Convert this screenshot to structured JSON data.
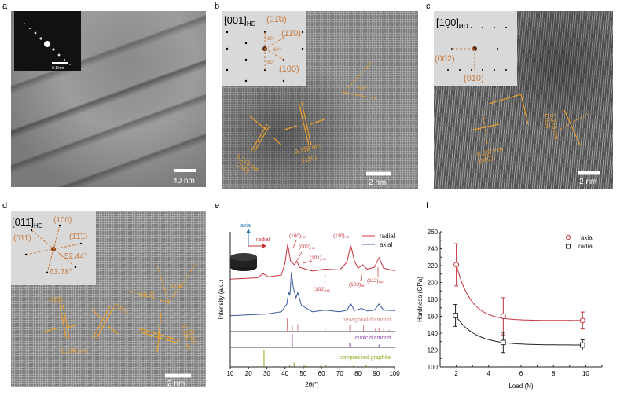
{
  "panels": {
    "a": {
      "label": "a",
      "scale_bar": "40 nm",
      "inset_scale": "0.1/nm"
    },
    "b": {
      "label": "b",
      "zone_axis": "[001̄]",
      "zone_sub": "HD",
      "inset_labels": [
        "(01̄0)",
        "(11̄0)",
        "(100)",
        "60°",
        "60°",
        "60°"
      ],
      "annotations": [
        "60°",
        "0.218 nm",
        "(100)",
        "0.218 nm",
        "(110)"
      ],
      "scale_bar": "2 nm"
    },
    "c": {
      "label": "c",
      "zone_axis": "[100]",
      "zone_sub": "HD",
      "inset_labels": [
        "(002)",
        "(010)"
      ],
      "annotations": [
        "0.207 nm",
        "(002)",
        "0.218 nm",
        "(010)"
      ],
      "scale_bar": "2 nm"
    },
    "d": {
      "label": "d",
      "zone_axis": "[011̄]",
      "zone_sub": "HD",
      "inset_labels": [
        "(100)",
        "(011)",
        "(1̄1̄1̄)",
        "52.44°",
        "63.78°"
      ],
      "annotations": [
        "(11̄1̄)",
        "(01̄1)",
        "0.196 nm",
        "63.7°",
        "52.6°",
        "0.218 nm",
        "(100)"
      ],
      "scale_bar": "2 nm"
    },
    "e": {
      "label": "e"
    },
    "f": {
      "label": "f"
    }
  },
  "colors": {
    "radial": "#c8323a",
    "axial": "#3a5aa0",
    "hexagonal": "#d88080",
    "cubic": "#8a40b0",
    "graphite": "#8ab020",
    "annotation": "#e8a030",
    "inset_text": "#c87a3c"
  },
  "chart_data": [
    {
      "type": "line",
      "panel": "e",
      "xlabel": "2θ(°)",
      "ylabel": "Intensity (a.u.)",
      "xlim": [
        10,
        100
      ],
      "xticks": [
        10,
        20,
        30,
        40,
        50,
        60,
        70,
        80,
        90,
        100
      ],
      "legend": "top-right",
      "inset": {
        "axial_label": "axial",
        "radial_label": "radial"
      },
      "series": [
        {
          "name": "radial",
          "color": "#c8323a",
          "points": [
            [
              10,
              65
            ],
            [
              25,
              66
            ],
            [
              28,
              69
            ],
            [
              31,
              66.6
            ],
            [
              38,
              68
            ],
            [
              40,
              76.7
            ],
            [
              41.5,
              91
            ],
            [
              43,
              78.6
            ],
            [
              45,
              75.7
            ],
            [
              46.5,
              78
            ],
            [
              48,
              73.8
            ],
            [
              55,
              71
            ],
            [
              62,
              72.4
            ],
            [
              70,
              71.8
            ],
            [
              74,
              77.7
            ],
            [
              76,
              90.3
            ],
            [
              78,
              78.6
            ],
            [
              80,
              73
            ],
            [
              82.5,
              75.7
            ],
            [
              85,
              72.4
            ],
            [
              89,
              73.8
            ],
            [
              91.5,
              81
            ],
            [
              94,
              73
            ],
            [
              100,
              71.3
            ]
          ]
        },
        {
          "name": "axial",
          "color": "#3a5aa0",
          "points": [
            [
              10,
              37.9
            ],
            [
              30,
              39.2
            ],
            [
              38,
              40.8
            ],
            [
              41,
              46.6
            ],
            [
              42,
              55.3
            ],
            [
              42.7,
              53
            ],
            [
              43.5,
              69.9
            ],
            [
              44.5,
              59.2
            ],
            [
              46,
              51
            ],
            [
              47,
              55
            ],
            [
              49,
              45.6
            ],
            [
              55,
              40.8
            ],
            [
              62,
              42
            ],
            [
              70,
              40.8
            ],
            [
              74,
              42
            ],
            [
              76,
              47
            ],
            [
              78,
              41.7
            ],
            [
              82,
              43.3
            ],
            [
              85,
              41.4
            ],
            [
              89,
              42
            ],
            [
              91.5,
              46.6
            ],
            [
              94,
              42
            ],
            [
              100,
              41.7
            ]
          ]
        }
      ],
      "peak_labels": [
        {
          "text": "(100)",
          "sub": "HD"
        },
        {
          "text": "(002)",
          "sub": "HD"
        },
        {
          "text": "(101)",
          "sub": "HD"
        },
        {
          "text": "(102)",
          "sub": "HD"
        },
        {
          "text": "(110)",
          "sub": "HD"
        },
        {
          "text": "(103)",
          "sub": "HD"
        },
        {
          "text": "(112)",
          "sub": "HD"
        }
      ],
      "references": [
        {
          "name": "hexagonal diamond",
          "color": "#d88080",
          "peaks": [
            [
              41.2,
              1
            ],
            [
              44,
              0.5
            ],
            [
              47,
              0.55
            ],
            [
              62,
              0.3
            ],
            [
              75.5,
              0.5
            ],
            [
              83,
              0.45
            ],
            [
              89.5,
              0.2
            ],
            [
              91.5,
              0.3
            ],
            [
              94,
              0.2
            ],
            [
              97,
              0.15
            ]
          ]
        },
        {
          "name": "cubic diamond",
          "color": "#8a40b0",
          "peaks": [
            [
              44,
              1
            ],
            [
              75.5,
              0.3
            ],
            [
              91.5,
              0.2
            ]
          ]
        },
        {
          "name": "compressed graphite",
          "color": "#8ab020",
          "peaks": [
            [
              28.5,
              1
            ],
            [
              42.5,
              0.1
            ],
            [
              45,
              0.25
            ],
            [
              50.5,
              0.15
            ],
            [
              52,
              0.05
            ],
            [
              59.5,
              0.1
            ],
            [
              62.5,
              0.1
            ],
            [
              77.5,
              0.1
            ],
            [
              84.5,
              0.15
            ],
            [
              94,
              0.05
            ]
          ]
        }
      ]
    },
    {
      "type": "scatter",
      "panel": "f",
      "xlabel": "Load (N)",
      "ylabel": "Hardness (GPa)",
      "xlim": [
        1,
        11
      ],
      "ylim": [
        100,
        260
      ],
      "xticks": [
        2,
        4,
        6,
        8,
        10
      ],
      "yticks": [
        100,
        120,
        140,
        160,
        180,
        200,
        220,
        240,
        260
      ],
      "legend": "top-right",
      "grid": false,
      "series": [
        {
          "name": "axial",
          "marker": "circle",
          "color": "#c8323a",
          "x": [
            2,
            4.9,
            9.8
          ],
          "y": [
            221,
            160,
            155
          ],
          "error": [
            25,
            22,
            10
          ],
          "fit": "exponential decay"
        },
        {
          "name": "radial",
          "marker": "square",
          "color": "#222222",
          "x": [
            1.95,
            4.9,
            9.8
          ],
          "y": [
            161,
            129,
            126
          ],
          "error": [
            13,
            12,
            6
          ],
          "fit": "exponential decay"
        }
      ]
    }
  ]
}
